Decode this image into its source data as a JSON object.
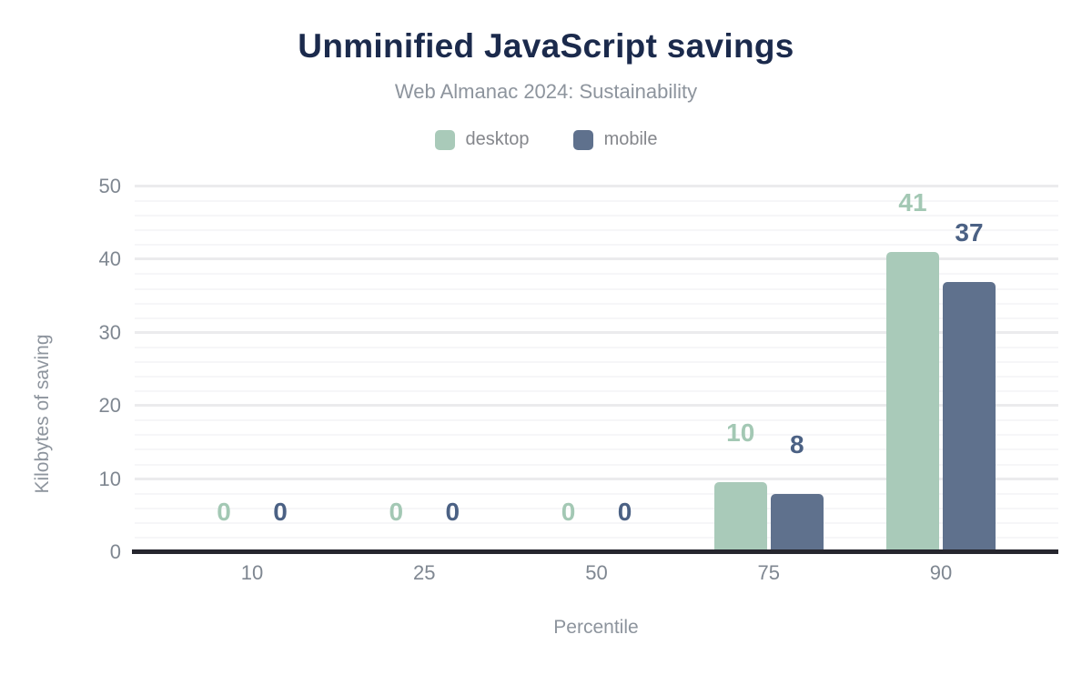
{
  "chart_data": {
    "type": "bar",
    "title": "Unminified JavaScript savings",
    "subtitle": "Web Almanac 2024: Sustainability",
    "xlabel": "Percentile",
    "ylabel": "Kilobytes of saving",
    "categories": [
      "10",
      "25",
      "50",
      "75",
      "90"
    ],
    "series": [
      {
        "name": "desktop",
        "color": "#a9cab9",
        "label_color": "#a3c8b4",
        "values": [
          0,
          0,
          0,
          10,
          41
        ],
        "bar_render_values": [
          0,
          0,
          0,
          9.6,
          41
        ],
        "labels": [
          "0",
          "0",
          "0",
          "10",
          "41"
        ]
      },
      {
        "name": "mobile",
        "color": "#5f718d",
        "label_color": "#4b6184",
        "values": [
          0,
          0,
          0,
          8,
          37
        ],
        "bar_render_values": [
          0,
          0,
          0,
          8,
          37
        ],
        "labels": [
          "0",
          "0",
          "0",
          "8",
          "37"
        ]
      }
    ],
    "ylim": [
      0,
      50
    ],
    "yticks": [
      0,
      10,
      20,
      30,
      40,
      50
    ],
    "grid": {
      "minor_step": 2,
      "major_step": 10,
      "axis": "y"
    },
    "legend_position": "top"
  },
  "colors": {
    "title": "#1b2a4c",
    "subtitle": "#8d949d",
    "legend_text": "#85878c",
    "tick_text": "#7f8791",
    "axis_title_text": "#8d949d",
    "grid_major": "#ebebed",
    "grid_minor": "#f6f6f8",
    "baseline": "#26262e",
    "background": "#ffffff"
  }
}
